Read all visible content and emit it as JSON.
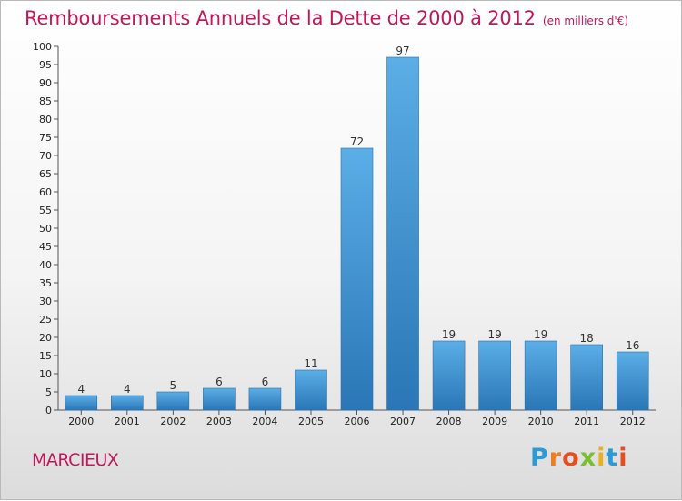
{
  "title": "Remboursements Annuels de la Dette de 2000 à 2012",
  "unit_note": "(en milliers d'€)",
  "commune": "MARCIEUX",
  "logo": {
    "text": "Proxiti",
    "letter_colors": [
      "#2a9bd6",
      "#f07c1b",
      "#e84d1e",
      "#7cbf2e",
      "#e8b21e",
      "#2a9bd6",
      "#e84d1e"
    ]
  },
  "colors": {
    "title": "#c2185b",
    "bar_light": "#5baee6",
    "bar_dark": "#2a76b6"
  },
  "chart_data": {
    "type": "bar",
    "categories": [
      "2000",
      "2001",
      "2002",
      "2003",
      "2004",
      "2005",
      "2006",
      "2007",
      "2008",
      "2009",
      "2010",
      "2011",
      "2012"
    ],
    "values": [
      4,
      4,
      5,
      6,
      6,
      11,
      72,
      97,
      19,
      19,
      19,
      18,
      16
    ],
    "y_ticks": [
      0,
      5,
      10,
      15,
      20,
      25,
      30,
      35,
      40,
      45,
      50,
      55,
      60,
      65,
      70,
      75,
      80,
      85,
      90,
      95,
      100
    ],
    "ylim": [
      0,
      100
    ],
    "grid": false,
    "legend": "none",
    "xlabel": "",
    "ylabel": ""
  }
}
